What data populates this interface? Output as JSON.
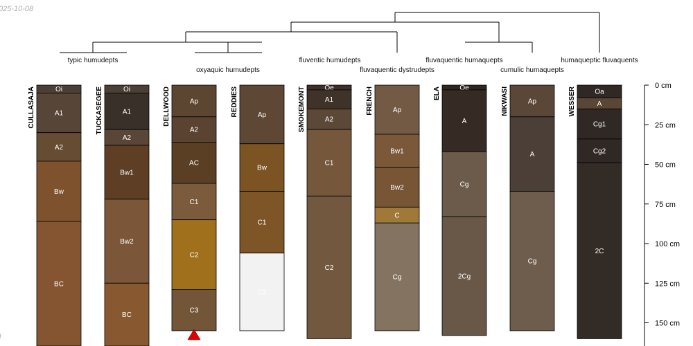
{
  "stamp": "025-10-08",
  "stamp_tail": "l",
  "chart_data": {
    "type": "soil-profile-sketch",
    "title": "",
    "depth_axis": {
      "ticks": [
        0,
        25,
        50,
        75,
        100,
        125,
        150
      ],
      "labels": [
        "0 cm",
        "25 cm",
        "50 cm",
        "75 cm",
        "100 cm",
        "125 cm",
        "150 cm"
      ],
      "range": [
        0,
        165
      ]
    },
    "taxa": [
      "typic humudepts",
      "oxyaquic humudepts",
      "fluventic humudepts",
      "fluvaquentic dystrudepts",
      "fluvaquentic humaquepts",
      "cumulic humaquepts",
      "humaqueptic fluvaquents"
    ],
    "profiles": [
      {
        "name": "CULLASAJA",
        "horizons": [
          {
            "name": "Oi",
            "top": 0,
            "bottom": 5,
            "color": "#4b4038"
          },
          {
            "name": "A1",
            "top": 5,
            "bottom": 30,
            "color": "#574537"
          },
          {
            "name": "A2",
            "top": 30,
            "bottom": 48,
            "color": "#654c33"
          },
          {
            "name": "Bw",
            "top": 48,
            "bottom": 86,
            "color": "#7d522d"
          },
          {
            "name": "BC",
            "top": 86,
            "bottom": 165,
            "color": "#845530"
          }
        ]
      },
      {
        "name": "TUCKASEGEE",
        "horizons": [
          {
            "name": "Oi",
            "top": 0,
            "bottom": 5,
            "color": "#4a4038"
          },
          {
            "name": "A1",
            "top": 5,
            "bottom": 28,
            "color": "#3a302a"
          },
          {
            "name": "A2",
            "top": 28,
            "bottom": 38,
            "color": "#5a4637"
          },
          {
            "name": "Bw1",
            "top": 38,
            "bottom": 72,
            "color": "#5e3f25"
          },
          {
            "name": "Bw2",
            "top": 72,
            "bottom": 125,
            "color": "#7b5638"
          },
          {
            "name": "BC",
            "top": 125,
            "bottom": 165,
            "color": "#885830"
          }
        ]
      },
      {
        "name": "DELLWOOD",
        "horizons": [
          {
            "name": "Ap",
            "top": 0,
            "bottom": 20,
            "color": "#5d4631"
          },
          {
            "name": "A2",
            "top": 20,
            "bottom": 36,
            "color": "#5a4330"
          },
          {
            "name": "AC",
            "top": 36,
            "bottom": 62,
            "color": "#5b3f24"
          },
          {
            "name": "C1",
            "top": 62,
            "bottom": 85,
            "color": "#7b5b3c"
          },
          {
            "name": "C2",
            "top": 85,
            "bottom": 129,
            "color": "#a0701d"
          },
          {
            "name": "C3",
            "top": 129,
            "bottom": 155,
            "color": "#735638"
          }
        ]
      },
      {
        "name": "REDDIES",
        "horizons": [
          {
            "name": "Ap",
            "top": 0,
            "bottom": 37,
            "color": "#5e4835"
          },
          {
            "name": "Bw",
            "top": 37,
            "bottom": 67,
            "color": "#7c5424"
          },
          {
            "name": "C1",
            "top": 67,
            "bottom": 106,
            "color": "#7d5526"
          },
          {
            "name": "C2",
            "top": 106,
            "bottom": 155,
            "color": "#f2f2f2"
          }
        ]
      },
      {
        "name": "SMOKEMONT",
        "horizons": [
          {
            "name": "Oe",
            "top": 0,
            "bottom": 3,
            "color": "#3c3029"
          },
          {
            "name": "A1",
            "top": 3,
            "bottom": 15,
            "color": "#3f3229"
          },
          {
            "name": "A2",
            "top": 15,
            "bottom": 28,
            "color": "#5c4837"
          },
          {
            "name": "C1",
            "top": 28,
            "bottom": 70,
            "color": "#75573b"
          },
          {
            "name": "C2",
            "top": 70,
            "bottom": 160,
            "color": "#72583f"
          }
        ]
      },
      {
        "name": "FRENCH",
        "horizons": [
          {
            "name": "Ap",
            "top": 0,
            "bottom": 31,
            "color": "#735a44"
          },
          {
            "name": "Bw1",
            "top": 31,
            "bottom": 52,
            "color": "#7b5838"
          },
          {
            "name": "Bw2",
            "top": 52,
            "bottom": 77,
            "color": "#775535"
          },
          {
            "name": "C",
            "top": 77,
            "bottom": 87,
            "color": "#a07838"
          },
          {
            "name": "Cg",
            "top": 87,
            "bottom": 155,
            "color": "#847360"
          }
        ]
      },
      {
        "name": "ELA",
        "horizons": [
          {
            "name": "Oe",
            "top": 0,
            "bottom": 3,
            "color": "#2e2621"
          },
          {
            "name": "A",
            "top": 3,
            "bottom": 42,
            "color": "#352a24"
          },
          {
            "name": "Cg",
            "top": 42,
            "bottom": 83,
            "color": "#6c5b4b"
          },
          {
            "name": "2Cg",
            "top": 83,
            "bottom": 158,
            "color": "#695847"
          }
        ]
      },
      {
        "name": "NIKWASI",
        "horizons": [
          {
            "name": "Ap",
            "top": 0,
            "bottom": 20,
            "color": "#5b4737"
          },
          {
            "name": "A",
            "top": 20,
            "bottom": 67,
            "color": "#4b3f37"
          },
          {
            "name": "Cg",
            "top": 67,
            "bottom": 155,
            "color": "#6e5d4c"
          }
        ]
      },
      {
        "name": "WESSER",
        "horizons": [
          {
            "name": "Oa",
            "top": 0,
            "bottom": 8,
            "color": "#302824"
          },
          {
            "name": "A",
            "top": 8,
            "bottom": 15,
            "color": "#594634"
          },
          {
            "name": "Cg1",
            "top": 15,
            "bottom": 34,
            "color": "#2f2824"
          },
          {
            "name": "Cg2",
            "top": 34,
            "bottom": 49,
            "color": "#302824"
          },
          {
            "name": "2C",
            "top": 49,
            "bottom": 160,
            "color": "#332b26"
          }
        ]
      }
    ],
    "marker": {
      "profile": "DELLWOOD",
      "symbol": "red-triangle",
      "color": "#e00000"
    }
  }
}
